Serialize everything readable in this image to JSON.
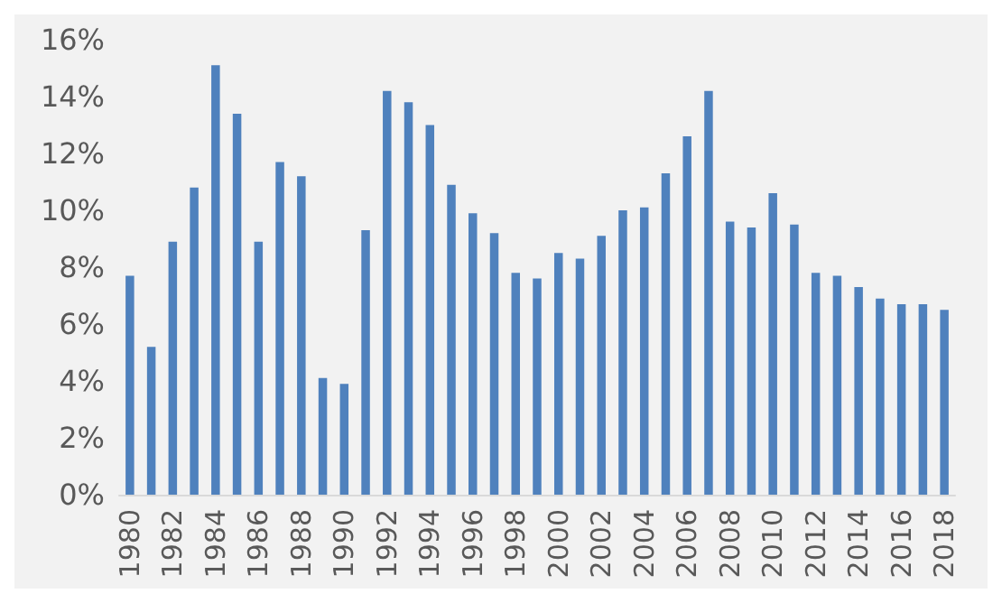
{
  "chart_data": {
    "type": "bar",
    "categories": [
      "1980",
      null,
      "1982",
      null,
      "1984",
      null,
      "1986",
      null,
      "1988",
      null,
      "1990",
      null,
      "1992",
      null,
      "1994",
      null,
      "1996",
      null,
      "1998",
      null,
      "2000",
      null,
      "2002",
      null,
      "2004",
      null,
      "2006",
      null,
      "2008",
      null,
      "2010",
      null,
      "2012",
      null,
      "2014",
      null,
      "2016",
      null,
      "2018"
    ],
    "values": [
      7.7,
      5.2,
      8.9,
      10.8,
      15.1,
      13.4,
      8.9,
      11.7,
      11.2,
      4.1,
      3.9,
      9.3,
      14.2,
      13.8,
      13,
      10.9,
      9.9,
      9.2,
      7.8,
      7.6,
      8.5,
      8.3,
      9.1,
      10,
      10.1,
      11.3,
      12.6,
      14.2,
      9.6,
      9.4,
      10.6,
      9.5,
      7.8,
      7.7,
      7.3,
      6.9,
      6.7,
      6.7,
      6.5
    ],
    "color": "#4f81bd",
    "ylim": [
      0,
      16
    ],
    "yticks": [
      {
        "value": 0,
        "label": "0%"
      },
      {
        "value": 2,
        "label": "2%"
      },
      {
        "value": 4,
        "label": "4%"
      },
      {
        "value": 6,
        "label": "6%"
      },
      {
        "value": 8,
        "label": "8%"
      },
      {
        "value": 10,
        "label": "10%"
      },
      {
        "value": 12,
        "label": "12%"
      },
      {
        "value": 14,
        "label": "14%"
      },
      {
        "value": 16,
        "label": "16%"
      }
    ],
    "grid": false
  }
}
